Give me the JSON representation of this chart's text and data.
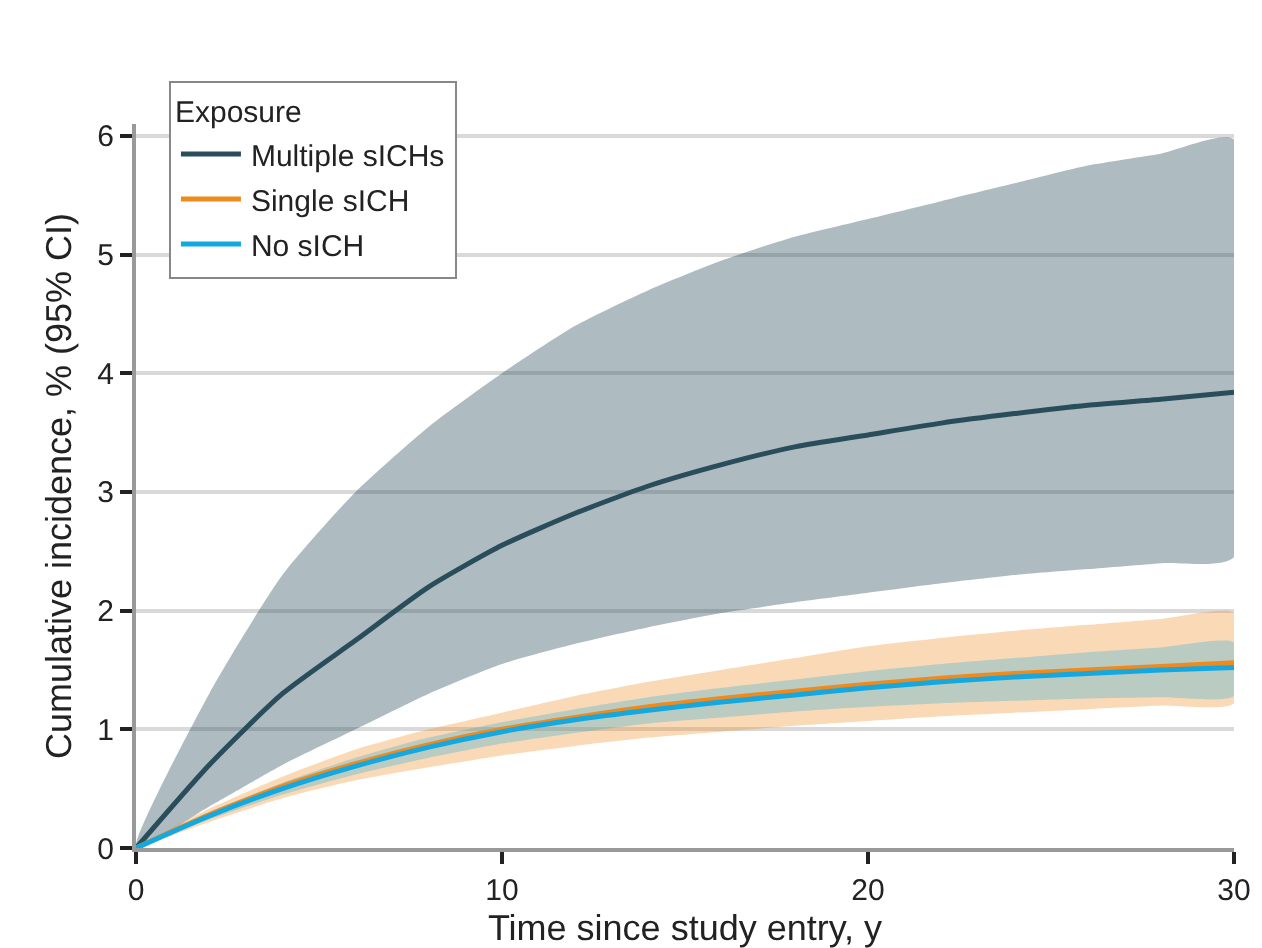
{
  "chart_data": {
    "type": "line",
    "xlabel": "Time since study entry, y",
    "ylabel": "Cumulative incidence, % (95% CI)",
    "legend_title": "Exposure",
    "legend": "top left",
    "grid": "y",
    "marker": "none",
    "line_style": "solid",
    "x": [
      0,
      2,
      4,
      6,
      8,
      10,
      12,
      14,
      16,
      18,
      20,
      22,
      24,
      26,
      28,
      30
    ],
    "xlim": [
      0,
      30
    ],
    "xticks": [
      0,
      10,
      20,
      30
    ],
    "ylim": [
      0,
      6.1
    ],
    "yticks": [
      0,
      1,
      2,
      3,
      4,
      5,
      6
    ],
    "series": [
      {
        "name": "Multiple sICHs",
        "color": "#2a4d5c",
        "values": [
          0,
          0.7,
          1.3,
          1.75,
          2.2,
          2.55,
          2.82,
          3.05,
          3.23,
          3.38,
          3.48,
          3.58,
          3.66,
          3.73,
          3.78,
          3.84
        ],
        "lower": [
          0,
          0.35,
          0.7,
          1.0,
          1.3,
          1.55,
          1.72,
          1.86,
          1.98,
          2.07,
          2.15,
          2.23,
          2.3,
          2.35,
          2.4,
          2.45
        ],
        "upper": [
          0,
          1.3,
          2.3,
          3.0,
          3.55,
          4.0,
          4.4,
          4.7,
          4.95,
          5.15,
          5.3,
          5.45,
          5.6,
          5.75,
          5.85,
          5.97
        ]
      },
      {
        "name": "Single sICH",
        "color": "#f08a1c",
        "values": [
          0,
          0.28,
          0.52,
          0.71,
          0.87,
          1.0,
          1.1,
          1.19,
          1.26,
          1.32,
          1.38,
          1.43,
          1.47,
          1.5,
          1.53,
          1.56
        ],
        "lower": [
          0,
          0.22,
          0.42,
          0.57,
          0.68,
          0.78,
          0.86,
          0.93,
          0.98,
          1.03,
          1.07,
          1.11,
          1.14,
          1.17,
          1.2,
          1.22
        ],
        "upper": [
          0,
          0.33,
          0.6,
          0.83,
          1.0,
          1.14,
          1.28,
          1.4,
          1.5,
          1.6,
          1.7,
          1.77,
          1.83,
          1.88,
          1.93,
          1.98
        ]
      },
      {
        "name": "No sICH",
        "color": "#14a8e0",
        "values": [
          0,
          0.27,
          0.5,
          0.69,
          0.85,
          0.98,
          1.08,
          1.16,
          1.23,
          1.29,
          1.35,
          1.4,
          1.44,
          1.47,
          1.5,
          1.52
        ],
        "lower": [
          0,
          0.24,
          0.45,
          0.62,
          0.76,
          0.88,
          0.97,
          1.05,
          1.1,
          1.15,
          1.19,
          1.22,
          1.24,
          1.26,
          1.27,
          1.28
        ],
        "upper": [
          0,
          0.3,
          0.55,
          0.76,
          0.93,
          1.06,
          1.17,
          1.27,
          1.35,
          1.42,
          1.49,
          1.55,
          1.6,
          1.65,
          1.69,
          1.73
        ]
      }
    ]
  }
}
